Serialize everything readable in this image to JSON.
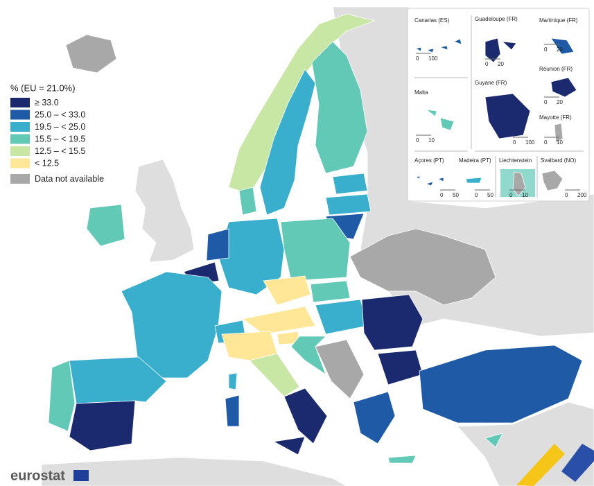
{
  "legend": {
    "title": "% (EU = 21.0%)",
    "items": [
      {
        "label": "≥ 33.0",
        "color": "#1b2a6e"
      },
      {
        "label": "25.0 – < 33.0",
        "color": "#1f5aa6"
      },
      {
        "label": "19.5 – < 25.0",
        "color": "#3aaecd"
      },
      {
        "label": "15.5 – < 19.5",
        "color": "#62c9b7"
      },
      {
        "label": "12.5 – < 15.5",
        "color": "#c8e6a4"
      },
      {
        "label": "< 12.5",
        "color": "#ffe797"
      },
      {
        "label": "Data not available",
        "color": "#a8a8a8"
      }
    ]
  },
  "insets": [
    {
      "label": "Canarias (ES)",
      "scale": [
        0,
        100
      ]
    },
    {
      "label": "Guadeloupe (FR)",
      "scale": [
        0,
        20
      ]
    },
    {
      "label": "Martinique (FR)",
      "scale": [
        0,
        20
      ]
    },
    {
      "label": "Malta",
      "scale": [
        0,
        10
      ]
    },
    {
      "label": "Guyane (FR)",
      "scale": [
        0,
        100
      ]
    },
    {
      "label": "Réunion (FR)",
      "scale": [
        0,
        20
      ]
    },
    {
      "label": "Mayotte (FR)",
      "scale": [
        0,
        10
      ]
    },
    {
      "label": "Açores (PT)",
      "scale": [
        0,
        50
      ]
    },
    {
      "label": "Madeira (PT)",
      "scale": [
        0,
        50
      ]
    },
    {
      "label": "Liechtenstein",
      "scale": [
        0,
        10
      ]
    },
    {
      "label": "Svalbard (NO)",
      "scale": [
        0,
        200
      ]
    }
  ],
  "logo": "eurostat"
}
